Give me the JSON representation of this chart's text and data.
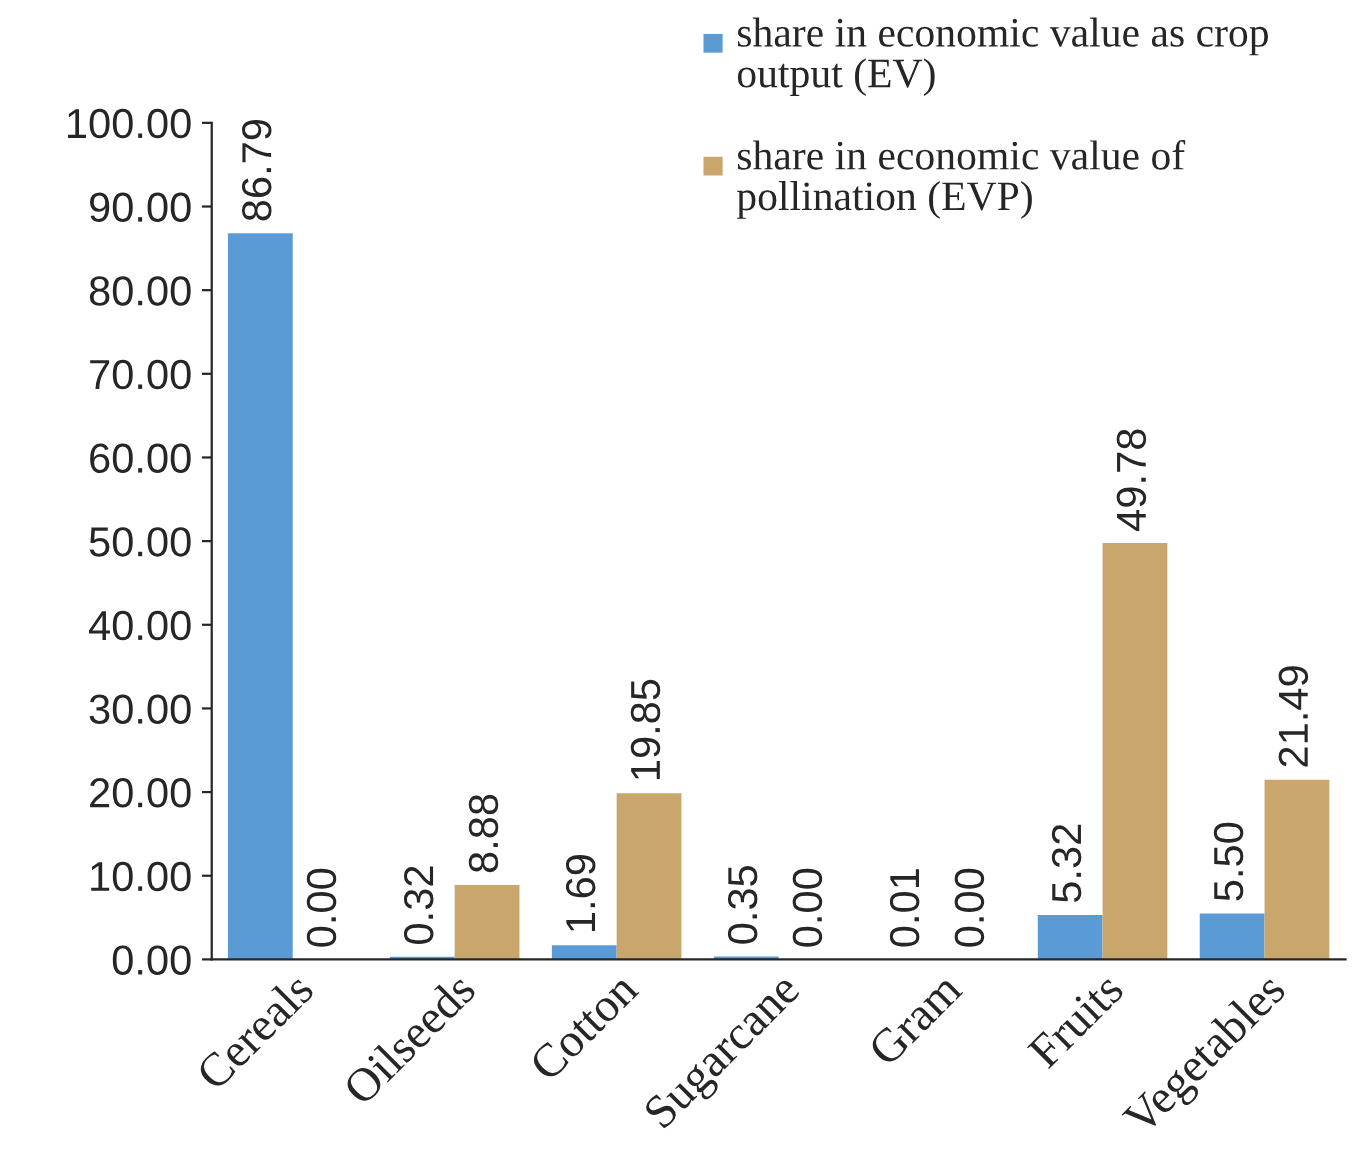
{
  "chart_data": {
    "type": "bar",
    "categories": [
      "Cereals",
      "Oilseeds",
      "Cotton",
      "Sugarcane",
      "Gram",
      "Fruits",
      "Vegetables"
    ],
    "series": [
      {
        "name": "share in economic value as crop output (EV)",
        "color": "#5b9bd5",
        "values": [
          86.79,
          0.32,
          1.69,
          0.35,
          0.01,
          5.32,
          5.5
        ],
        "value_labels": [
          "86.79",
          "0.32",
          "1.69",
          "0.35",
          "0.01",
          "5.32",
          "5.50"
        ]
      },
      {
        "name": "share in economic value of pollination (EVP)",
        "color": "#c9a66b",
        "values": [
          0.0,
          8.88,
          19.85,
          0.0,
          0.0,
          49.78,
          21.49
        ],
        "value_labels": [
          "0.00",
          "8.88",
          "19.85",
          "0.00",
          "0.00",
          "49.78",
          "21.49"
        ]
      }
    ],
    "ylim": [
      0,
      100
    ],
    "yticks": [
      {
        "value": 0,
        "label": "0.00"
      },
      {
        "value": 10,
        "label": "10.00"
      },
      {
        "value": 20,
        "label": "20.00"
      },
      {
        "value": 30,
        "label": "30.00"
      },
      {
        "value": 40,
        "label": "40.00"
      },
      {
        "value": 50,
        "label": "50.00"
      },
      {
        "value": 60,
        "label": "60.00"
      },
      {
        "value": 70,
        "label": "70.00"
      },
      {
        "value": 80,
        "label": "80.00"
      },
      {
        "value": 90,
        "label": "90.00"
      },
      {
        "value": 100,
        "label": "100.00"
      }
    ],
    "grid": false,
    "legend": "top right"
  }
}
